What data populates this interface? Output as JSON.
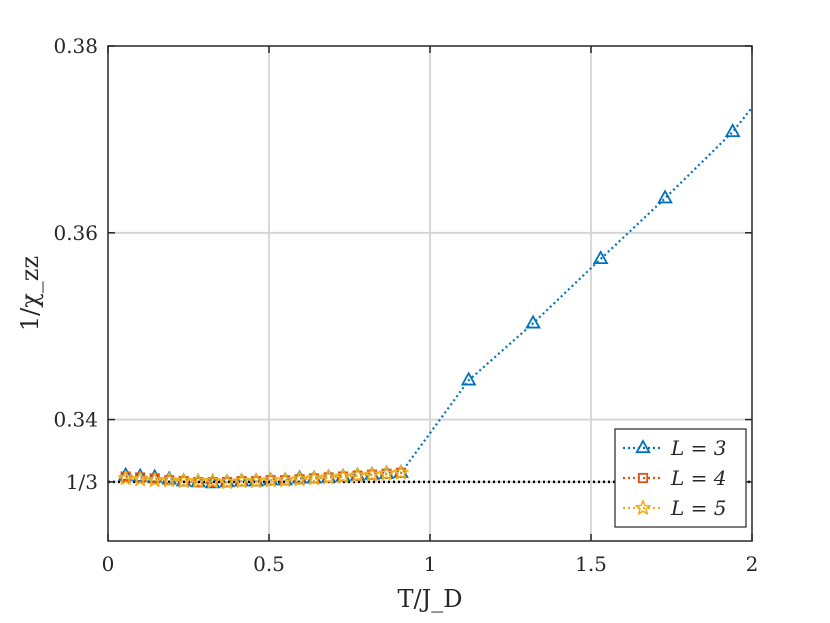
{
  "chart_data": {
    "type": "line",
    "xlabel": "T/J_D",
    "ylabel": "1/χ_zz",
    "xlim": [
      0,
      2
    ],
    "ylim": [
      0.327,
      0.38
    ],
    "x_ticks": [
      0,
      0.5,
      1,
      1.5,
      2
    ],
    "x_tick_labels": [
      "0",
      "0.5",
      "1",
      "1.5",
      "2"
    ],
    "y_ticks": [
      0.333333,
      0.34,
      0.36,
      0.38
    ],
    "y_tick_labels": [
      "1/3",
      "0.34",
      "0.36",
      "0.38"
    ],
    "grid": true,
    "legend_position": "bottom-right",
    "reference_line": {
      "y": 0.333333,
      "style": "dotted",
      "color": "#000000"
    },
    "series": [
      {
        "name": "L = 3",
        "color": "#0072BD",
        "marker": "triangle",
        "x": [
          0.055,
          0.1,
          0.145,
          0.19,
          0.235,
          0.28,
          0.325,
          0.37,
          0.415,
          0.46,
          0.505,
          0.55,
          0.595,
          0.64,
          0.685,
          0.73,
          0.775,
          0.82,
          0.865,
          0.91,
          1.12,
          1.32,
          1.53,
          1.73,
          1.94
        ],
        "y": [
          0.334,
          0.3339,
          0.3338,
          0.3336,
          0.3334,
          0.3333,
          0.3332,
          0.3333,
          0.3334,
          0.3334,
          0.3335,
          0.3335,
          0.3337,
          0.3337,
          0.3338,
          0.3339,
          0.334,
          0.3341,
          0.3342,
          0.3343,
          0.3442,
          0.3503,
          0.3572,
          0.3637,
          0.3708
        ]
      },
      {
        "name": "L = 4",
        "color": "#D95319",
        "marker": "square",
        "x": [
          0.055,
          0.1,
          0.145,
          0.19,
          0.235,
          0.28,
          0.325,
          0.37,
          0.415,
          0.46,
          0.505,
          0.55,
          0.595,
          0.64,
          0.685,
          0.73,
          0.775,
          0.82,
          0.865,
          0.91
        ],
        "y": [
          0.3339,
          0.3338,
          0.3337,
          0.3335,
          0.3334,
          0.3333,
          0.3333,
          0.3333,
          0.3334,
          0.3334,
          0.3335,
          0.3335,
          0.3336,
          0.3337,
          0.3338,
          0.3339,
          0.334,
          0.3341,
          0.3342,
          0.3343
        ]
      },
      {
        "name": "L = 5",
        "color": "#EDB120",
        "marker": "star",
        "x": [
          0.055,
          0.1,
          0.145,
          0.19,
          0.235,
          0.28,
          0.325,
          0.37,
          0.415,
          0.46,
          0.505,
          0.55,
          0.595,
          0.64,
          0.685,
          0.73,
          0.775,
          0.82,
          0.865,
          0.91
        ],
        "y": [
          0.3337,
          0.3336,
          0.3335,
          0.3335,
          0.3334,
          0.3334,
          0.3334,
          0.3333,
          0.3334,
          0.3334,
          0.3335,
          0.3335,
          0.3336,
          0.3337,
          0.3338,
          0.3339,
          0.334,
          0.3341,
          0.3342,
          0.3343
        ]
      }
    ]
  }
}
